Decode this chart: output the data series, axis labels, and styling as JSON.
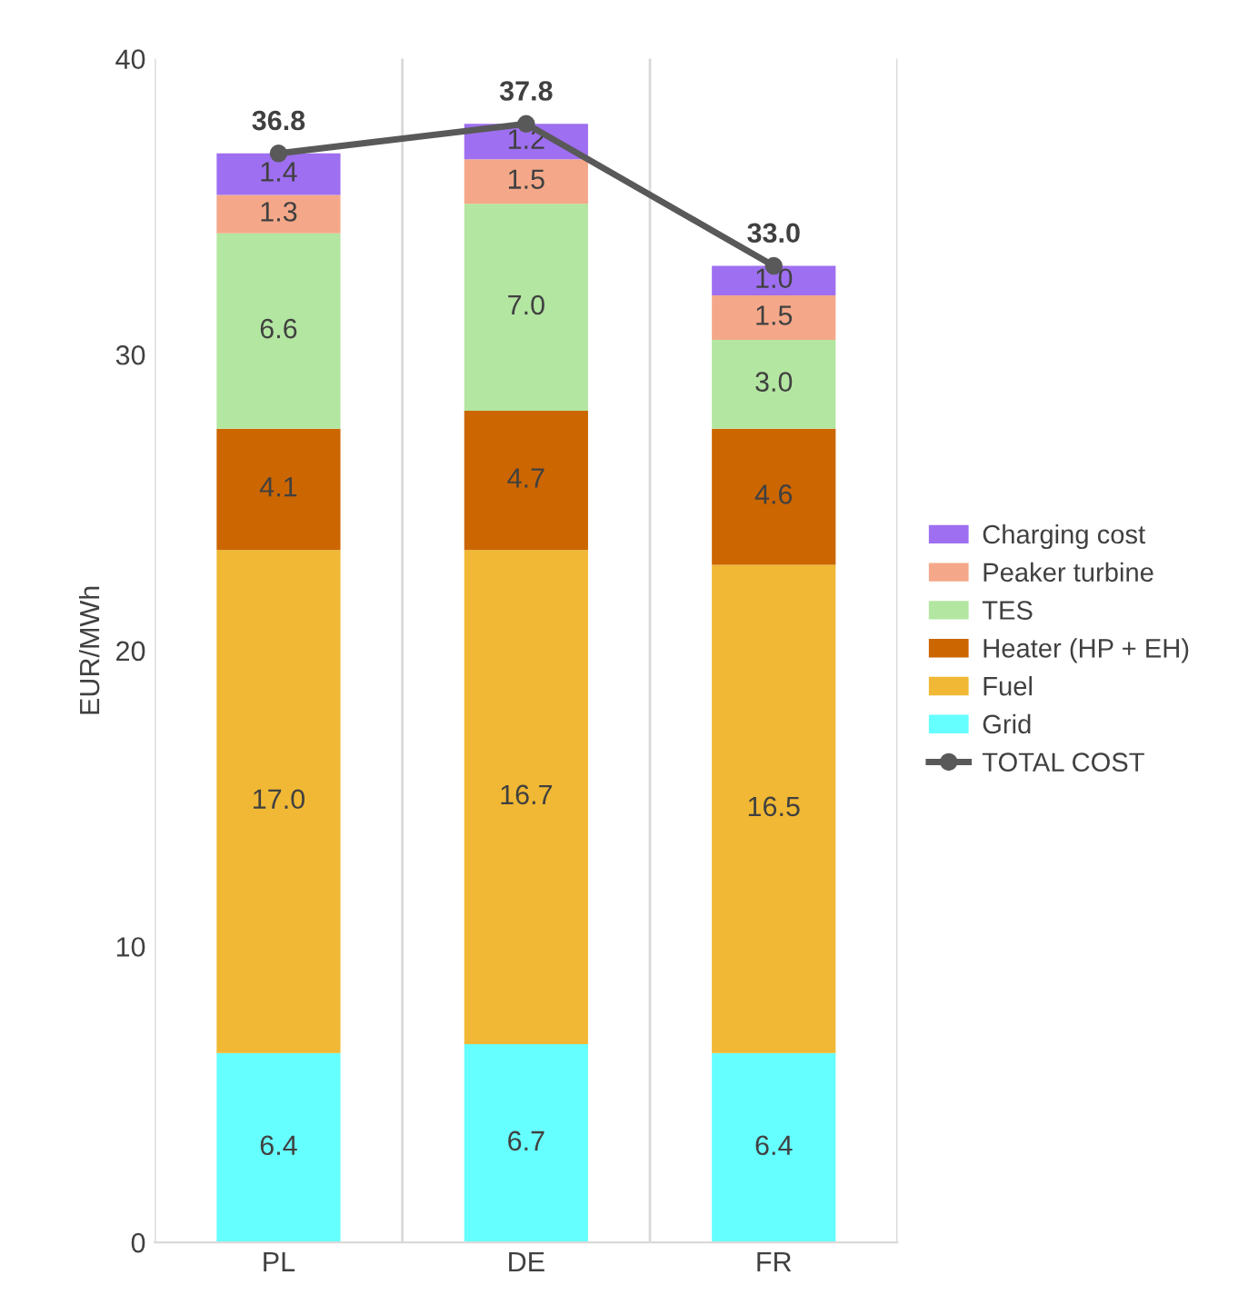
{
  "chart_data": {
    "type": "bar",
    "stacked": true,
    "ylabel": "EUR/MWh",
    "categories": [
      "PL",
      "DE",
      "FR"
    ],
    "ylim": [
      0,
      40
    ],
    "yticks": [
      0,
      10,
      20,
      30,
      40
    ],
    "grid": "x",
    "legend": "right",
    "series": [
      {
        "name": "Grid",
        "color": "#66ffff",
        "values": [
          6.4,
          6.7,
          6.4
        ],
        "value_labels": [
          "6.4",
          "6.7",
          "6.4"
        ]
      },
      {
        "name": "Fuel",
        "color": "#f0b834",
        "values": [
          17.0,
          16.7,
          16.5
        ],
        "value_labels": [
          "17.0",
          "16.7",
          "16.5"
        ]
      },
      {
        "name": "Heater (HP + EH)",
        "color": "#cc6600",
        "values": [
          4.1,
          4.7,
          4.6
        ],
        "value_labels": [
          "4.1",
          "4.7",
          "4.6"
        ]
      },
      {
        "name": "TES",
        "color": "#b3e6a1",
        "values": [
          6.6,
          7.0,
          3.0
        ],
        "value_labels": [
          "6.6",
          "7.0",
          "3.0"
        ]
      },
      {
        "name": "Peaker turbine",
        "color": "#f4a889",
        "values": [
          1.3,
          1.5,
          1.5
        ],
        "value_labels": [
          "1.3",
          "1.5",
          "1.5"
        ]
      },
      {
        "name": "Charging cost",
        "color": "#9e6ff0",
        "values": [
          1.4,
          1.2,
          1.0
        ],
        "value_labels": [
          "1.4",
          "1.2",
          "1.0"
        ]
      },
      {
        "name": "TOTAL COST",
        "type": "line",
        "color": "#595959",
        "marker": "circle",
        "values": [
          36.8,
          37.8,
          33.0
        ],
        "value_labels": [
          "36.8",
          "37.8",
          "33.0"
        ]
      }
    ]
  }
}
